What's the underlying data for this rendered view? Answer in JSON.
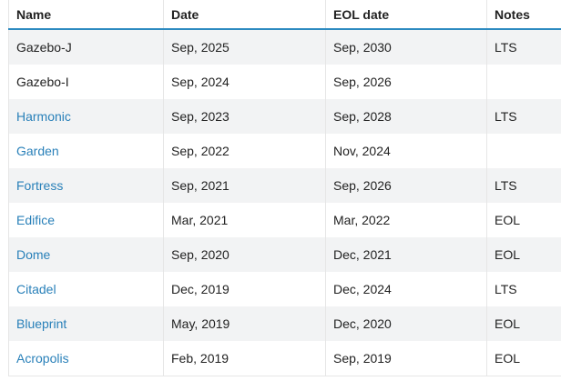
{
  "table": {
    "headers": {
      "name": "Name",
      "date": "Date",
      "eol": "EOL date",
      "notes": "Notes"
    },
    "rows": [
      {
        "name": "Gazebo-J",
        "name_is_link": false,
        "date": "Sep, 2025",
        "eol": "Sep, 2030",
        "notes": "LTS"
      },
      {
        "name": "Gazebo-I",
        "name_is_link": false,
        "date": "Sep, 2024",
        "eol": "Sep, 2026",
        "notes": ""
      },
      {
        "name": "Harmonic",
        "name_is_link": true,
        "date": "Sep, 2023",
        "eol": "Sep, 2028",
        "notes": "LTS"
      },
      {
        "name": "Garden",
        "name_is_link": true,
        "date": "Sep, 2022",
        "eol": "Nov, 2024",
        "notes": ""
      },
      {
        "name": "Fortress",
        "name_is_link": true,
        "date": "Sep, 2021",
        "eol": "Sep, 2026",
        "notes": "LTS"
      },
      {
        "name": "Edifice",
        "name_is_link": true,
        "date": "Mar, 2021",
        "eol": "Mar, 2022",
        "notes": "EOL"
      },
      {
        "name": "Dome",
        "name_is_link": true,
        "date": "Sep, 2020",
        "eol": "Dec, 2021",
        "notes": "EOL"
      },
      {
        "name": "Citadel",
        "name_is_link": true,
        "date": "Dec, 2019",
        "eol": "Dec, 2024",
        "notes": "LTS"
      },
      {
        "name": "Blueprint",
        "name_is_link": true,
        "date": "May, 2019",
        "eol": "Dec, 2020",
        "notes": "EOL"
      },
      {
        "name": "Acropolis",
        "name_is_link": true,
        "date": "Feb, 2019",
        "eol": "Sep, 2019",
        "notes": "EOL"
      }
    ]
  },
  "colors": {
    "link": "#2980b9",
    "header_rule": "#2c8ac0",
    "stripe": "#f2f3f4"
  }
}
